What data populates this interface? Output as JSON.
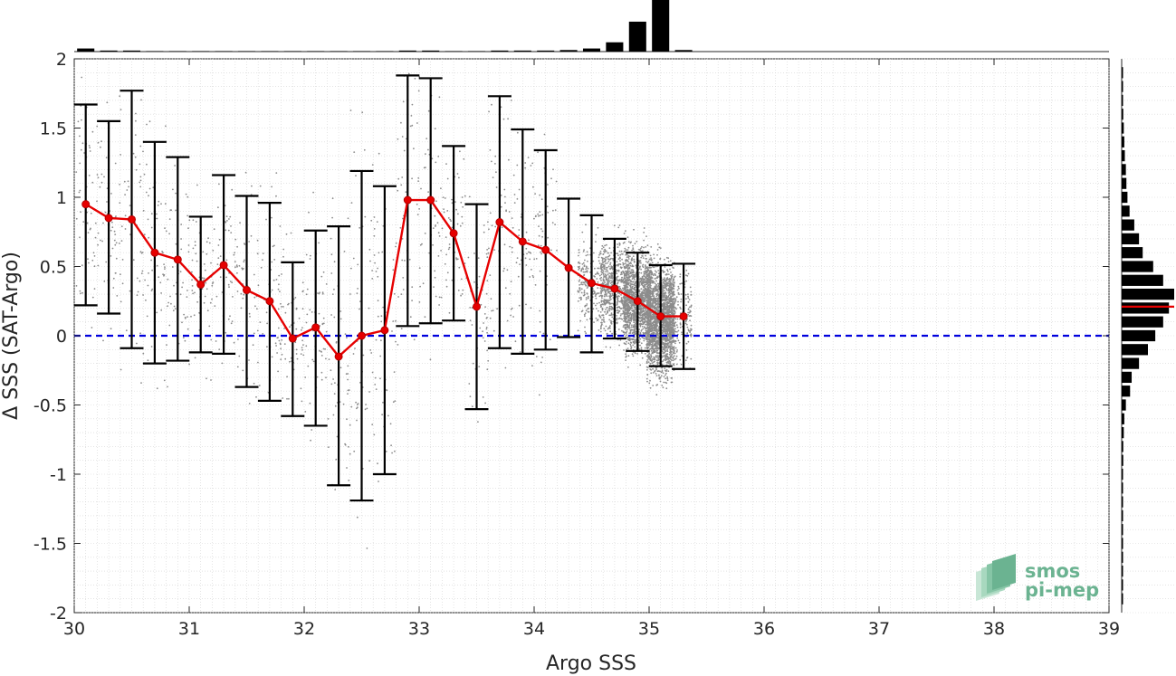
{
  "chart_data": {
    "type": "scatter",
    "xlabel": "Argo SSS",
    "ylabel": "Δ SSS (SAT-Argo)",
    "xlim": [
      30,
      39
    ],
    "ylim": [
      -2,
      2
    ],
    "xticks": [
      30,
      31,
      32,
      33,
      34,
      35,
      36,
      37,
      38,
      39
    ],
    "yticks": [
      -2,
      -1.5,
      -1,
      -0.5,
      0,
      0.5,
      1,
      1.5,
      2
    ],
    "grid": true,
    "zero_line": {
      "y": 0,
      "color": "#0000dd",
      "style": "dashed"
    },
    "binned_mean": {
      "color": "#e60000",
      "x": [
        30.1,
        30.3,
        30.5,
        30.7,
        30.9,
        31.1,
        31.3,
        31.5,
        31.7,
        31.9,
        32.1,
        32.3,
        32.5,
        32.7,
        32.9,
        33.1,
        33.3,
        33.5,
        33.7,
        33.9,
        34.1,
        34.3,
        34.5,
        34.7,
        34.9,
        35.1,
        35.3
      ],
      "mean": [
        0.95,
        0.85,
        0.84,
        0.6,
        0.55,
        0.37,
        0.51,
        0.33,
        0.25,
        -0.02,
        0.06,
        -0.15,
        0.0,
        0.04,
        0.98,
        0.98,
        0.74,
        0.21,
        0.82,
        0.68,
        0.62,
        0.49,
        0.38,
        0.34,
        0.25,
        0.14,
        0.14
      ],
      "lower": [
        0.22,
        0.16,
        -0.09,
        -0.2,
        -0.18,
        -0.12,
        -0.13,
        -0.37,
        -0.47,
        -0.58,
        -0.65,
        -1.08,
        -1.19,
        -1.0,
        0.07,
        0.09,
        0.11,
        -0.53,
        -0.09,
        -0.13,
        -0.1,
        -0.01,
        -0.12,
        -0.02,
        -0.11,
        -0.22,
        -0.24
      ],
      "upper": [
        1.67,
        1.55,
        1.77,
        1.4,
        1.29,
        0.86,
        1.16,
        1.01,
        0.96,
        0.53,
        0.76,
        0.79,
        1.19,
        1.08,
        1.88,
        1.86,
        1.37,
        0.95,
        1.73,
        1.49,
        1.34,
        0.99,
        0.87,
        0.7,
        0.6,
        0.51,
        0.52
      ]
    },
    "scatter_points": {
      "color": "#8c8c8c",
      "note_points": "dense cloud near x 34.4-35.3, sparse elsewhere"
    },
    "top_histogram": {
      "x": [
        30.1,
        30.3,
        30.5,
        30.7,
        30.9,
        31.1,
        31.3,
        31.5,
        31.7,
        31.9,
        32.1,
        32.3,
        32.5,
        32.7,
        32.9,
        33.1,
        33.3,
        33.5,
        33.7,
        33.9,
        34.1,
        34.3,
        34.5,
        34.7,
        34.9,
        35.1,
        35.3
      ],
      "counts": [
        6,
        2,
        2,
        1,
        1,
        1,
        1,
        1,
        1,
        1,
        1,
        1,
        1,
        1,
        2,
        2,
        1,
        1,
        2,
        2,
        2,
        3,
        6,
        18,
        58,
        100,
        3
      ]
    },
    "right_histogram": {
      "y": [
        -1.9,
        -1.8,
        -1.7,
        -1.6,
        -1.5,
        -1.4,
        -1.3,
        -1.2,
        -1.1,
        -1.0,
        -0.9,
        -0.8,
        -0.7,
        -0.6,
        -0.5,
        -0.4,
        -0.3,
        -0.2,
        -0.1,
        0.0,
        0.1,
        0.2,
        0.3,
        0.4,
        0.5,
        0.6,
        0.7,
        0.8,
        0.9,
        1.0,
        1.1,
        1.2,
        1.3,
        1.4,
        1.5,
        1.6,
        1.7,
        1.8,
        1.9
      ],
      "counts": [
        1,
        1,
        1,
        1,
        1,
        1,
        1,
        1,
        2,
        2,
        3,
        3,
        4,
        5,
        8,
        16,
        19,
        33,
        50,
        64,
        79,
        90,
        100,
        79,
        60,
        40,
        33,
        24,
        15,
        11,
        9,
        8,
        6,
        5,
        4,
        3,
        2,
        2,
        1
      ],
      "mean_line": {
        "y": 0.21,
        "color": "#e60000"
      }
    }
  },
  "logo": {
    "line1": "smos",
    "line2": "pi-mep"
  }
}
